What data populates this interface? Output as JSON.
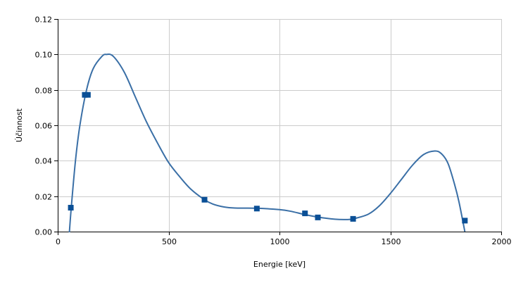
{
  "chart_data": {
    "type": "scatter",
    "xlabel": "Energie [keV]",
    "ylabel": "Účinnost",
    "xlim": [
      0,
      2000
    ],
    "ylim": [
      0,
      0.12
    ],
    "x_ticks": [
      0,
      500,
      1000,
      1500,
      2000
    ],
    "x_tick_labels": [
      "0",
      "500",
      "1000",
      "1500",
      "2000"
    ],
    "y_ticks": [
      0,
      0.02,
      0.04,
      0.06,
      0.08,
      0.1,
      0.12
    ],
    "y_tick_labels": [
      "0.00",
      "0.02",
      "0.04",
      "0.06",
      "0.08",
      "0.10",
      "0.12"
    ],
    "grid": true,
    "series": [
      {
        "kind": "markers",
        "marker": "square",
        "color": "#0a4f96",
        "x": [
          59,
          122,
          136,
          662,
          898,
          1115,
          1173,
          1332,
          1836
        ],
        "y": [
          0.0135,
          0.0772,
          0.0772,
          0.018,
          0.013,
          0.0103,
          0.008,
          0.0072,
          0.0062
        ]
      },
      {
        "kind": "curve",
        "color": "#3a6fa6",
        "x": [
          50,
          60,
          80,
          100,
          130,
          160,
          200,
          220,
          250,
          300,
          350,
          400,
          450,
          500,
          550,
          600,
          662,
          700,
          750,
          800,
          898,
          1000,
          1050,
          1115,
          1173,
          1250,
          1300,
          1332,
          1400,
          1450,
          1500,
          1550,
          1600,
          1650,
          1700,
          1730,
          1760,
          1790,
          1810,
          1836
        ],
        "y": [
          -0.005,
          0.012,
          0.04,
          0.06,
          0.08,
          0.092,
          0.099,
          0.1,
          0.099,
          0.09,
          0.076,
          0.062,
          0.05,
          0.039,
          0.031,
          0.024,
          0.018,
          0.0155,
          0.0139,
          0.0133,
          0.0132,
          0.0124,
          0.0115,
          0.0096,
          0.0082,
          0.007,
          0.0068,
          0.0072,
          0.0098,
          0.0145,
          0.0215,
          0.0295,
          0.0375,
          0.0435,
          0.0455,
          0.044,
          0.0385,
          0.0265,
          0.0165,
          0.0
        ]
      }
    ]
  }
}
